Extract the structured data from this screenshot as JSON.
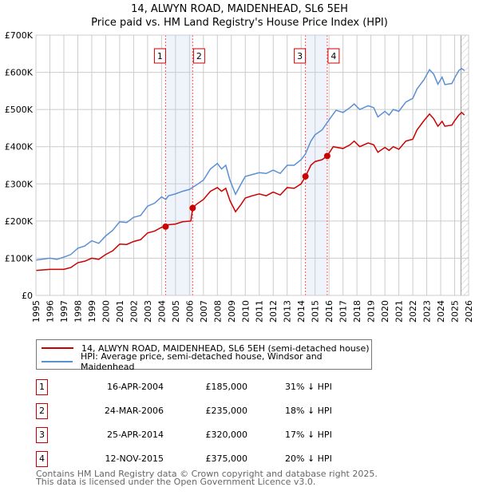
{
  "chart_data": {
    "type": "line",
    "title": "14, ALWYN ROAD, MAIDENHEAD, SL6 5EH",
    "subtitle": "Price paid vs. HM Land Registry's House Price Index (HPI)",
    "xlim": [
      1995,
      2026
    ],
    "ylim": [
      0,
      700000
    ],
    "x_ticks": [
      "1995",
      "1996",
      "1997",
      "1998",
      "1999",
      "2000",
      "2001",
      "2002",
      "2003",
      "2004",
      "2005",
      "2006",
      "2007",
      "2008",
      "2009",
      "2010",
      "2011",
      "2012",
      "2013",
      "2014",
      "2015",
      "2016",
      "2017",
      "2018",
      "2019",
      "2020",
      "2021",
      "2022",
      "2023",
      "2024",
      "2025",
      "2026"
    ],
    "y_ticks": [
      {
        "v": 0,
        "label": "£0"
      },
      {
        "v": 100000,
        "label": "£100K"
      },
      {
        "v": 200000,
        "label": "£200K"
      },
      {
        "v": 300000,
        "label": "£300K"
      },
      {
        "v": 400000,
        "label": "£400K"
      },
      {
        "v": 500000,
        "label": "£500K"
      },
      {
        "v": 600000,
        "label": "£600K"
      },
      {
        "v": 700000,
        "label": "£700K"
      }
    ],
    "grid": true,
    "forecast_hatch_from": 2025.45,
    "series": [
      {
        "name": "14, ALWYN ROAD, MAIDENHEAD, SL6 5EH (semi-detached house)",
        "color": "#cc0000",
        "x": [
          1995,
          1996,
          1997,
          1997.5,
          1998,
          1998.5,
          1999,
          1999.5,
          2000,
          2000.5,
          2001,
          2001.5,
          2002,
          2002.5,
          2003,
          2003.5,
          2004,
          2004.29,
          2004.5,
          2005,
          2005.5,
          2006.1,
          2006.23,
          2006.5,
          2007,
          2007.5,
          2008,
          2008.3,
          2008.6,
          2008.9,
          2009.3,
          2009.7,
          2010,
          2010.5,
          2011,
          2011.5,
          2012,
          2012.5,
          2013,
          2013.5,
          2014,
          2014.31,
          2014.7,
          2015,
          2015.5,
          2015.87,
          2016.3,
          2017,
          2017.5,
          2017.8,
          2018.2,
          2018.8,
          2019.2,
          2019.5,
          2020,
          2020.3,
          2020.6,
          2021,
          2021.5,
          2022,
          2022.3,
          2022.8,
          2023.2,
          2023.5,
          2023.8,
          2024.1,
          2024.3,
          2024.8,
          2025,
          2025.3,
          2025.5,
          2025.7
        ],
        "y": [
          67,
          70,
          70,
          75,
          88,
          92,
          100,
          97,
          110,
          120,
          138,
          137,
          145,
          150,
          168,
          173,
          183,
          185,
          190,
          192,
          198,
          200,
          235,
          245,
          258,
          280,
          290,
          280,
          288,
          255,
          225,
          245,
          262,
          268,
          273,
          268,
          278,
          270,
          290,
          288,
          300,
          320,
          350,
          360,
          365,
          375,
          400,
          395,
          405,
          415,
          400,
          410,
          405,
          385,
          398,
          390,
          400,
          393,
          415,
          420,
          445,
          470,
          488,
          475,
          455,
          468,
          455,
          458,
          470,
          485,
          492,
          485
        ]
      },
      {
        "name": "HPI: Average price, semi-detached house, Windsor and Maidenhead",
        "color": "#5b8fd4",
        "x": [
          1995,
          1996,
          1996.5,
          1997,
          1997.5,
          1998,
          1998.5,
          1999,
          1999.5,
          2000,
          2000.5,
          2001,
          2001.5,
          2002,
          2002.5,
          2003,
          2003.5,
          2004,
          2004.3,
          2004.5,
          2005,
          2005.5,
          2006,
          2006.5,
          2007,
          2007.5,
          2008,
          2008.3,
          2008.6,
          2008.9,
          2009.3,
          2009.7,
          2010,
          2010.5,
          2011,
          2011.5,
          2012,
          2012.5,
          2013,
          2013.5,
          2014,
          2014.3,
          2014.7,
          2015,
          2015.5,
          2016,
          2016.5,
          2017,
          2017.5,
          2017.8,
          2018.2,
          2018.8,
          2019.2,
          2019.5,
          2020,
          2020.3,
          2020.6,
          2021,
          2021.5,
          2022,
          2022.3,
          2022.8,
          2023.2,
          2023.5,
          2023.8,
          2024.1,
          2024.3,
          2024.8,
          2025,
          2025.3,
          2025.5,
          2025.7
        ],
        "y": [
          95,
          100,
          97,
          103,
          110,
          127,
          133,
          147,
          140,
          160,
          175,
          198,
          196,
          210,
          215,
          240,
          248,
          265,
          258,
          268,
          273,
          280,
          285,
          297,
          310,
          340,
          355,
          340,
          350,
          310,
          272,
          300,
          320,
          325,
          330,
          328,
          337,
          328,
          350,
          350,
          365,
          380,
          415,
          432,
          445,
          472,
          498,
          492,
          505,
          515,
          500,
          510,
          505,
          480,
          495,
          485,
          500,
          495,
          520,
          530,
          555,
          580,
          607,
          595,
          568,
          587,
          567,
          570,
          585,
          605,
          610,
          605
        ]
      }
    ],
    "y_unit": 1000,
    "sales": [
      {
        "n": "1",
        "x": 2004.29,
        "date": "16-APR-2004",
        "price": 185000,
        "price_label": "£185,000",
        "hpi": "31% ↓ HPI"
      },
      {
        "n": "2",
        "x": 2006.23,
        "date": "24-MAR-2006",
        "price": 235000,
        "price_label": "£235,000",
        "hpi": "18% ↓ HPI"
      },
      {
        "n": "3",
        "x": 2014.31,
        "date": "25-APR-2014",
        "price": 320000,
        "price_label": "£320,000",
        "hpi": "17% ↓ HPI"
      },
      {
        "n": "4",
        "x": 2015.87,
        "date": "12-NOV-2015",
        "price": 375000,
        "price_label": "£375,000",
        "hpi": "20% ↓ HPI"
      }
    ],
    "shaded_periods": [
      [
        2004.29,
        2006.23
      ],
      [
        2014.31,
        2015.87
      ]
    ]
  },
  "footer": {
    "line1": "Contains HM Land Registry data © Crown copyright and database right 2025.",
    "line2": "This data is licensed under the Open Government Licence v3.0."
  }
}
